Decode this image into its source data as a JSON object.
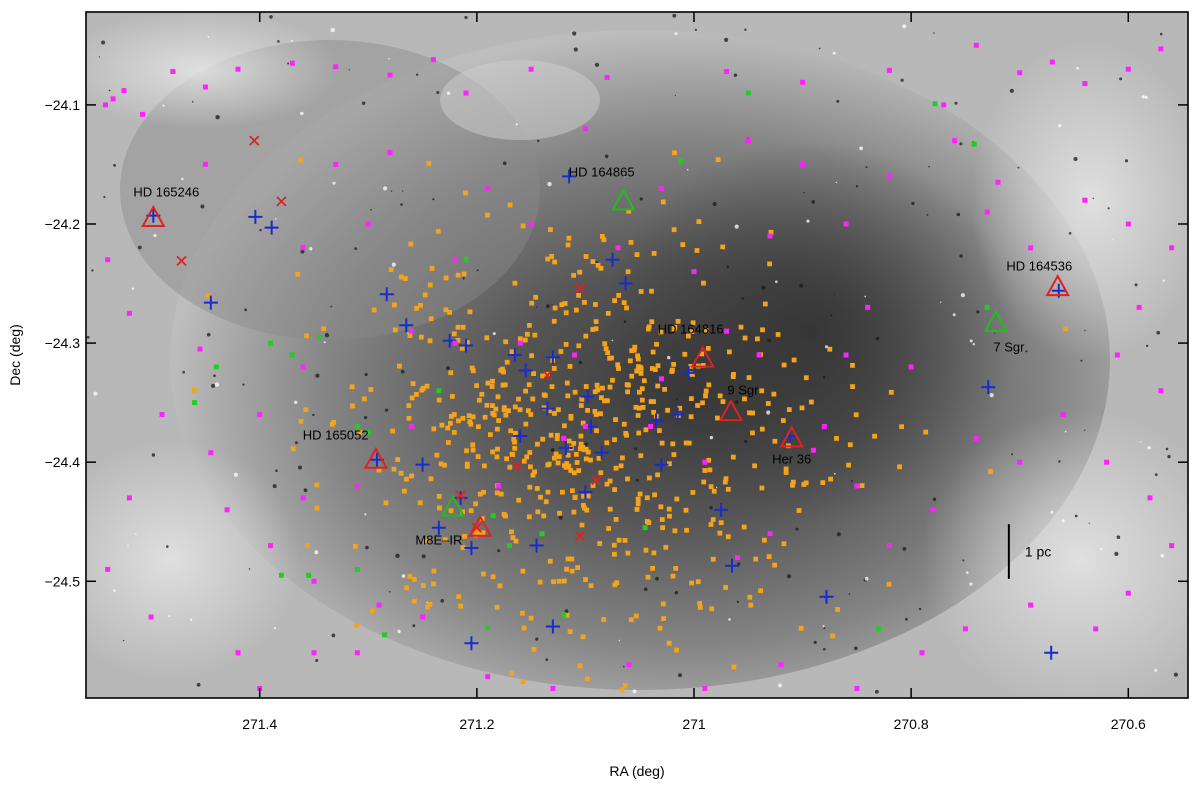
{
  "chart_data": {
    "type": "scatter",
    "xlabel": "RA (deg)",
    "ylabel": "Dec (deg)",
    "xlim": [
      271.56,
      270.545
    ],
    "ylim": [
      -24.598,
      -24.022
    ],
    "x_ticks": [
      271.4,
      271.2,
      271,
      270.8,
      270.6
    ],
    "x_tick_labels": [
      "271.4",
      "271.2",
      "271",
      "270.8",
      "270.6"
    ],
    "y_ticks": [
      -24.1,
      -24.2,
      -24.3,
      -24.4,
      -24.5
    ],
    "y_tick_labels": [
      "−24.1",
      "−24.2",
      "−24.3",
      "−24.4",
      "−24.5"
    ],
    "grid": false,
    "background": "grayscale nebula image (Lagoon Nebula, M8)",
    "scale_bar": {
      "label": "1 pc",
      "ra": 270.71,
      "dec_top": -24.452,
      "dec_bottom": -24.498
    },
    "colors": {
      "orange": "#f5a31a",
      "magenta": "#ff22ff",
      "green": "#22cc22",
      "red": "#dd2222",
      "blue": "#1a2cc8",
      "frame": "#000000"
    },
    "labels": [
      {
        "text": "HD 165246",
        "ra": 271.486,
        "dec": -24.177
      },
      {
        "text": "HD 164865",
        "ra": 271.085,
        "dec": -24.16
      },
      {
        "text": "HD 164536",
        "ra": 270.682,
        "dec": -24.239
      },
      {
        "text": "HD 164816",
        "ra": 271.003,
        "dec": -24.292
      },
      {
        "text": "7 Sgr",
        "ra": 270.71,
        "dec": -24.307
      },
      {
        "text": "9 Sgr",
        "ra": 270.955,
        "dec": -24.343
      },
      {
        "text": "HD 165052",
        "ra": 271.33,
        "dec": -24.381
      },
      {
        "text": "Her 36",
        "ra": 270.91,
        "dec": -24.401
      },
      {
        "text": "M8E–IR",
        "ra": 271.235,
        "dec": -24.469
      }
    ],
    "series": [
      {
        "name": "",
        "marker": "triangle",
        "color": "#dd2222",
        "points": [
          [
            271.498,
            -24.195
          ],
          [
            271.293,
            -24.398
          ],
          [
            270.992,
            -24.313
          ],
          [
            270.966,
            -24.358
          ],
          [
            270.91,
            -24.38
          ],
          [
            270.665,
            -24.253
          ],
          [
            271.197,
            -24.455
          ]
        ]
      },
      {
        "name": "",
        "marker": "triangle",
        "color": "#22bb22",
        "points": [
          [
            271.065,
            -24.181
          ],
          [
            270.722,
            -24.283
          ],
          [
            271.222,
            -24.438
          ]
        ]
      },
      {
        "name": "",
        "marker": "plus",
        "color": "#1a2cc8",
        "points": [
          [
            271.498,
            -24.193
          ],
          [
            271.445,
            -24.266
          ],
          [
            271.404,
            -24.194
          ],
          [
            271.389,
            -24.203
          ],
          [
            271.283,
            -24.259
          ],
          [
            271.265,
            -24.285
          ],
          [
            271.292,
            -24.398
          ],
          [
            271.25,
            -24.402
          ],
          [
            271.225,
            -24.298
          ],
          [
            271.21,
            -24.302
          ],
          [
            271.215,
            -24.43
          ],
          [
            271.235,
            -24.455
          ],
          [
            271.205,
            -24.472
          ],
          [
            271.165,
            -24.31
          ],
          [
            271.155,
            -24.323
          ],
          [
            271.13,
            -24.312
          ],
          [
            271.135,
            -24.355
          ],
          [
            271.098,
            -24.345
          ],
          [
            271.118,
            -24.388
          ],
          [
            271.095,
            -24.37
          ],
          [
            271.085,
            -24.392
          ],
          [
            271.035,
            -24.365
          ],
          [
            271.03,
            -24.402
          ],
          [
            271.015,
            -24.36
          ],
          [
            271.005,
            -24.325
          ],
          [
            270.975,
            -24.44
          ],
          [
            270.965,
            -24.487
          ],
          [
            271.075,
            -24.23
          ],
          [
            271.063,
            -24.25
          ],
          [
            271.115,
            -24.16
          ],
          [
            271.16,
            -24.378
          ],
          [
            271.1,
            -24.425
          ],
          [
            271.145,
            -24.47
          ],
          [
            271.13,
            -24.538
          ],
          [
            271.205,
            -24.552
          ],
          [
            270.878,
            -24.513
          ],
          [
            270.729,
            -24.337
          ],
          [
            270.671,
            -24.56
          ],
          [
            270.664,
            -24.256
          ],
          [
            270.912,
            -24.378
          ]
        ]
      },
      {
        "name": "",
        "marker": "x",
        "color": "#dd2222",
        "points": [
          [
            271.405,
            -24.13
          ],
          [
            271.38,
            -24.181
          ],
          [
            271.472,
            -24.231
          ],
          [
            271.105,
            -24.254
          ],
          [
            271.163,
            -24.403
          ],
          [
            271.09,
            -24.415
          ],
          [
            271.135,
            -24.327
          ],
          [
            271.105,
            -24.462
          ],
          [
            271.2,
            -24.455
          ],
          [
            271.215,
            -24.428
          ]
        ]
      },
      {
        "name": "",
        "marker": "square",
        "color": "#ff22ff",
        "points": [
          [
            271.542,
            -24.1
          ],
          [
            271.535,
            -24.095
          ],
          [
            271.525,
            -24.088
          ],
          [
            271.508,
            -24.108
          ],
          [
            271.48,
            -24.072
          ],
          [
            271.45,
            -24.085
          ],
          [
            271.42,
            -24.07
          ],
          [
            271.37,
            -24.065
          ],
          [
            271.33,
            -24.068
          ],
          [
            271.28,
            -24.075
          ],
          [
            271.24,
            -24.062
          ],
          [
            271.21,
            -24.09
          ],
          [
            271.15,
            -24.07
          ],
          [
            271.08,
            -24.077
          ],
          [
            270.97,
            -24.072
          ],
          [
            270.9,
            -24.081
          ],
          [
            270.82,
            -24.071
          ],
          [
            270.77,
            -24.1
          ],
          [
            270.74,
            -24.05
          ],
          [
            270.7,
            -24.073
          ],
          [
            270.67,
            -24.064
          ],
          [
            270.64,
            -24.082
          ],
          [
            270.6,
            -24.07
          ],
          [
            270.57,
            -24.053
          ],
          [
            271.45,
            -24.15
          ],
          [
            271.54,
            -24.23
          ],
          [
            271.52,
            -24.275
          ],
          [
            271.455,
            -24.305
          ],
          [
            271.49,
            -24.36
          ],
          [
            271.445,
            -24.392
          ],
          [
            271.52,
            -24.43
          ],
          [
            271.36,
            -24.32
          ],
          [
            271.43,
            -24.44
          ],
          [
            271.39,
            -24.47
          ],
          [
            271.35,
            -24.5
          ],
          [
            271.29,
            -24.52
          ],
          [
            271.25,
            -24.53
          ],
          [
            271.31,
            -24.56
          ],
          [
            271.42,
            -24.56
          ],
          [
            271.5,
            -24.53
          ],
          [
            271.54,
            -24.49
          ],
          [
            271.4,
            -24.59
          ],
          [
            271.35,
            -24.56
          ],
          [
            271.19,
            -24.58
          ],
          [
            271.13,
            -24.59
          ],
          [
            271.06,
            -24.57
          ],
          [
            270.99,
            -24.59
          ],
          [
            270.92,
            -24.57
          ],
          [
            270.85,
            -24.59
          ],
          [
            270.79,
            -24.56
          ],
          [
            270.75,
            -24.54
          ],
          [
            270.69,
            -24.52
          ],
          [
            270.63,
            -24.54
          ],
          [
            270.6,
            -24.51
          ],
          [
            270.56,
            -24.47
          ],
          [
            270.58,
            -24.43
          ],
          [
            270.62,
            -24.4
          ],
          [
            270.66,
            -24.36
          ],
          [
            270.7,
            -24.4
          ],
          [
            270.74,
            -24.38
          ],
          [
            270.57,
            -24.34
          ],
          [
            270.61,
            -24.31
          ],
          [
            270.59,
            -24.27
          ],
          [
            270.56,
            -24.22
          ],
          [
            270.6,
            -24.2
          ],
          [
            270.64,
            -24.18
          ],
          [
            270.69,
            -24.22
          ],
          [
            270.73,
            -24.19
          ],
          [
            270.76,
            -24.13
          ],
          [
            270.72,
            -24.165
          ],
          [
            270.82,
            -24.16
          ],
          [
            270.86,
            -24.2
          ],
          [
            270.84,
            -24.27
          ],
          [
            270.8,
            -24.32
          ],
          [
            270.86,
            -24.31
          ],
          [
            270.88,
            -24.37
          ],
          [
            270.85,
            -24.42
          ],
          [
            270.82,
            -24.47
          ],
          [
            270.78,
            -24.44
          ],
          [
            270.89,
            -24.39
          ],
          [
            270.93,
            -24.46
          ],
          [
            270.96,
            -24.48
          ],
          [
            270.99,
            -24.4
          ],
          [
            271.04,
            -24.37
          ],
          [
            271.1,
            -24.37
          ],
          [
            271.12,
            -24.38
          ],
          [
            271.18,
            -24.42
          ],
          [
            271.22,
            -24.3
          ],
          [
            271.26,
            -24.29
          ],
          [
            271.16,
            -24.3
          ],
          [
            271.11,
            -24.31
          ],
          [
            271.03,
            -24.33
          ],
          [
            271.07,
            -24.22
          ],
          [
            271.0,
            -24.24
          ],
          [
            270.97,
            -24.29
          ],
          [
            270.94,
            -24.31
          ],
          [
            271.3,
            -24.2
          ],
          [
            271.28,
            -24.14
          ],
          [
            271.33,
            -24.15
          ],
          [
            271.36,
            -24.22
          ],
          [
            271.26,
            -24.37
          ],
          [
            271.31,
            -24.42
          ],
          [
            271.36,
            -24.43
          ],
          [
            271.4,
            -24.36
          ],
          [
            271.22,
            -24.23
          ],
          [
            271.15,
            -24.2
          ],
          [
            271.19,
            -24.17
          ],
          [
            271.1,
            -24.12
          ],
          [
            271.03,
            -24.17
          ],
          [
            270.93,
            -24.21
          ],
          [
            270.9,
            -24.15
          ],
          [
            270.95,
            -24.13
          ]
        ]
      },
      {
        "name": "",
        "marker": "square",
        "color": "#22cc22",
        "points": [
          [
            270.778,
            -24.099
          ],
          [
            270.742,
            -24.133
          ],
          [
            271.012,
            -24.147
          ],
          [
            271.21,
            -24.23
          ],
          [
            271.345,
            -24.295
          ],
          [
            271.37,
            -24.31
          ],
          [
            271.39,
            -24.3
          ],
          [
            271.3,
            -24.375
          ],
          [
            271.31,
            -24.37
          ],
          [
            271.355,
            -24.495
          ],
          [
            271.31,
            -24.49
          ],
          [
            271.38,
            -24.495
          ],
          [
            271.14,
            -24.46
          ],
          [
            271.045,
            -24.455
          ],
          [
            271.12,
            -24.528
          ],
          [
            271.19,
            -24.539
          ],
          [
            271.285,
            -24.545
          ],
          [
            270.83,
            -24.54
          ],
          [
            270.73,
            -24.27
          ],
          [
            270.95,
            -24.09
          ],
          [
            271.235,
            -24.34
          ],
          [
            271.185,
            -24.445
          ],
          [
            271.17,
            -24.47
          ],
          [
            271.44,
            -24.32
          ],
          [
            271.46,
            -24.35
          ]
        ]
      }
    ]
  }
}
